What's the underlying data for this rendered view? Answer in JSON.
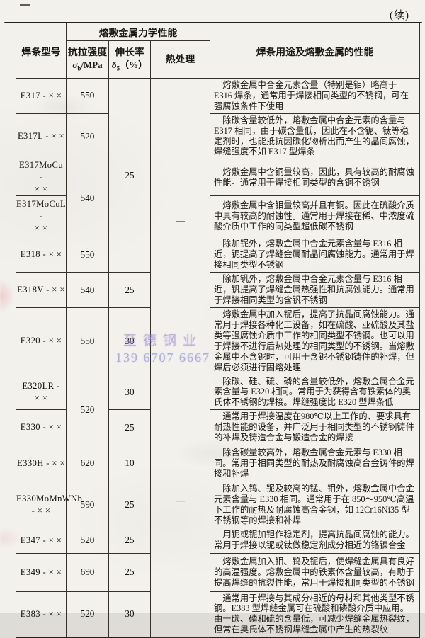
{
  "page": {
    "continued_label": "(续)",
    "watermark": {
      "line1": "至德钢业",
      "line2": "139 6707 6667"
    }
  },
  "table": {
    "header": {
      "model": "焊条型号",
      "group": "熔敷金属力学性能",
      "tensile": {
        "name": "抗拉强度",
        "sym": "σ",
        "sub": "b",
        "unit": "/MPa"
      },
      "elongation": {
        "name": "伸长率",
        "sym": "δ",
        "sub": "5",
        "unit": "（%）"
      },
      "heat": "热处理",
      "usage": "焊条用途及熔敷金属的性能"
    },
    "heat_dash": "—",
    "rows": [
      {
        "model": "E317 - × ×",
        "tensile": "550",
        "elongation": "25",
        "desc": "熔敷金属中合金元素含量（特别是钼）略高于 E316 焊条，通常用于焊接相同类型的不锈钢，可在强腐蚀条件下使用"
      },
      {
        "model": "E317L - × ×",
        "tensile": "520",
        "desc": "除碳含量较低外，熔敷金属中合金元素的含量与 E317 相同，由于碳含量低，因此在不含铌、钛等稳定剂时，也能抵抗因碳化物析出而产生的晶间腐蚀，焊缝强度不如 E317 型焊条"
      },
      {
        "model": "E317MoCu -\n× ×",
        "tensile": "540",
        "desc": "熔敷金属中含铜量较高，因此，具有较高的耐腐蚀性能。通常用于焊接相同类型的含铜不锈钢"
      },
      {
        "model": "E317MoCuL -\n× ×",
        "desc": "熔敷金属中含钼量较高并且有铜。因此在硫酸介质中具有较高的耐蚀性。通常用于焊接在稀、中浓度硫酸介质中工作的同类型超低碳不锈钢"
      },
      {
        "model": "E318 - × ×",
        "tensile": "550",
        "desc": "除加铌外，熔敷金属中合金元素含量与 E316 相近，铌提高了焊缝金属耐晶间腐蚀能力。通常用于焊接相同类型不锈钢"
      },
      {
        "model": "E318V - × ×",
        "tensile": "540",
        "elongation": "25",
        "desc": "除加钒外，熔敷金属中合金元素含量与 E316 相近，钒提高了焊缝金属热强性和抗腐蚀能力。通常用于焊接相同类型的含钒不锈钢"
      },
      {
        "model": "E320 - × ×",
        "tensile": "550",
        "elongation": "30",
        "desc": "熔敷金属中加入铌后，提高了抗晶间腐蚀能力。通常用于焊接各种化工设备，如在硫酸、亚硫酸及其盐类等强腐蚀介质中工作的相同类型不锈钢。也可以用于焊接不进行后热处理的相同类型的不锈钢。当熔敷金属中不含铌时，可用于含铌不锈钢铸件的补焊，但焊后必须进行固熔处理"
      },
      {
        "model": "E320LR -\n× ×",
        "tensile": "520",
        "elongation": "30",
        "desc": "除碳、硅、硫、磷的含量较低外，熔敷金属合金元素含量与 E320 相同。常用于为获得含有铁素体的奥氏体不锈钢的焊接。焊缝强度比 E320 型焊条低"
      },
      {
        "model": "E330 - × ×",
        "elongation": "25",
        "desc": "通常用于焊接温度在980℃以上工作的、要求具有耐热性能的设备，并广泛用于相同类型的不锈钢铸件的补焊及铸造合金与锻造合金的焊接"
      },
      {
        "model": "E330H - × ×",
        "tensile": "620",
        "elongation": "10",
        "desc": "除含碳量较高外，熔敷金属合金元素与 E330 相同。常用于相同类型的耐热及耐腐蚀高合金铸件的焊接和补焊"
      },
      {
        "model": "E330MoMnWNb\n- × ×",
        "tensile": "590",
        "elongation": "25",
        "desc": "除加入钨、铌及较高的锰、钼外，熔敷金属中合金元素含量与 E330 相同。通常用于在 850～950℃高温下工作的耐热及耐腐蚀高合金钢，如 12Cr16Ni35 型不锈钢等的焊接和补焊"
      },
      {
        "model": "E347 - × ×",
        "tensile": "520",
        "elongation": "25",
        "desc": "用铌或铌加钽作稳定剂，提高抗晶间腐蚀的能力。常用于焊接以铌或钛做稳定剂成分相近的铬镍合金"
      },
      {
        "model": "E349 - × ×",
        "tensile": "690",
        "elongation": "25",
        "desc": "熔敷金属加入钼、钨及铌后，使焊缝金属具有良好的高温强度。熔敷金属中的铁素体含量较高，有助于提高焊缝的抗裂性能，常用于焊接相同类型的不锈钢"
      },
      {
        "model": "E383 - × ×",
        "tensile": "520",
        "elongation": "30",
        "desc": "通常用于焊接与其成分相近的母材和其他类型不锈钢。E383 型焊缝金属可在硫酸和磷酸介质中应用。由于碳、磷和硫的含量低，可减少焊缝金属热裂纹，但常在奥氏体不锈钢焊缝金属中产生的热裂纹"
      }
    ]
  }
}
